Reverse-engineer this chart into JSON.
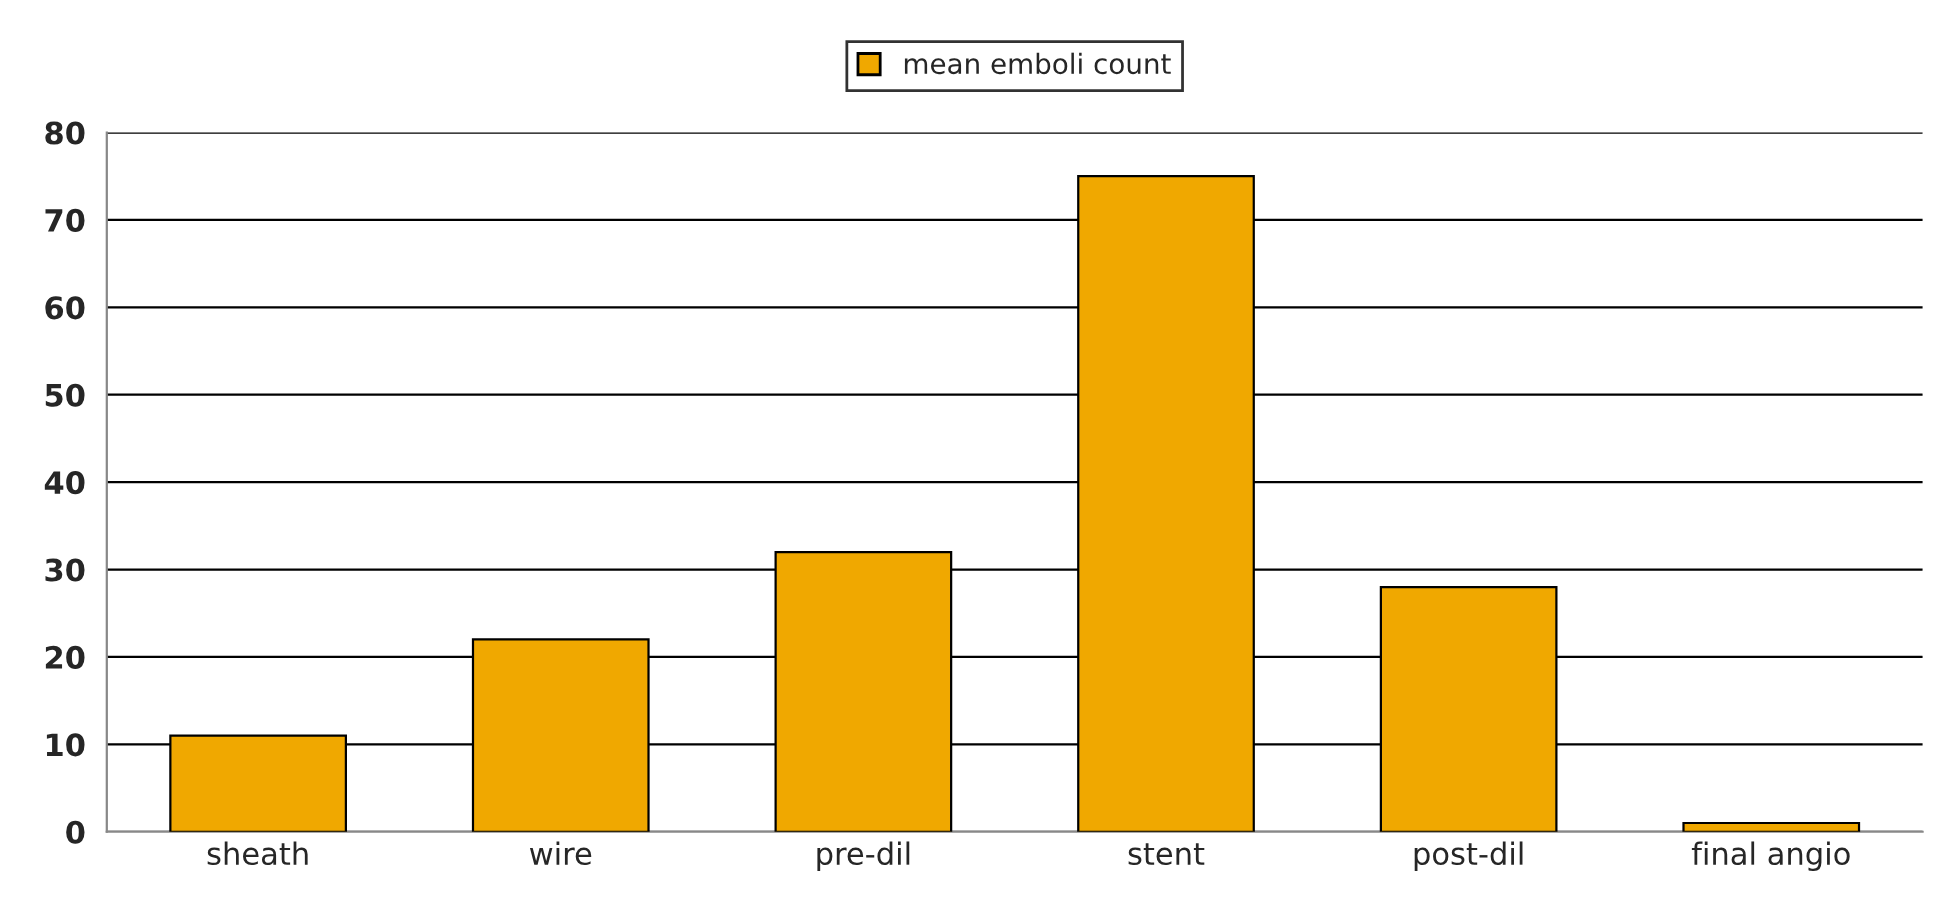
{
  "chart_data": {
    "type": "bar",
    "categories": [
      "sheath",
      "wire",
      "pre-dil",
      "stent",
      "post-dil",
      "final angio"
    ],
    "series": [
      {
        "name": "mean emboli count",
        "color": "#f0a800",
        "values": [
          11,
          22,
          32,
          75,
          28,
          1
        ]
      }
    ],
    "ylim": [
      0,
      80
    ],
    "yticks": [
      0,
      10,
      20,
      30,
      40,
      50,
      60,
      70,
      80
    ],
    "grid": "y",
    "legend": "top"
  }
}
